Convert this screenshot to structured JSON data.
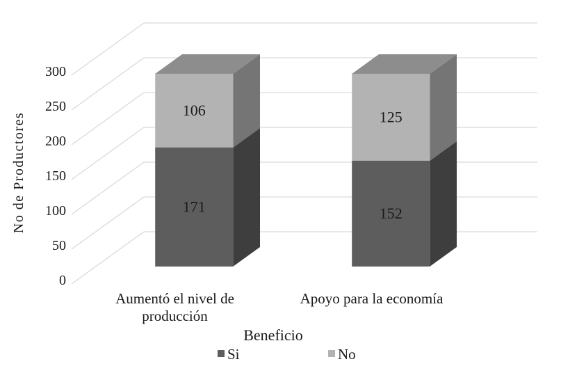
{
  "figure": {
    "background": "#ffffff"
  },
  "chart_data": {
    "type": "bar",
    "subtype": "3d-stacked-column",
    "title": "",
    "categories": [
      "Aumentó el nivel de producción",
      "Apoyo para la economía"
    ],
    "category_lines": [
      [
        "Aumentó el nivel de",
        "producción"
      ],
      [
        "Apoyo para la economía"
      ]
    ],
    "series": [
      {
        "name": "Si",
        "values": [
          171,
          152
        ],
        "front_color": "#5d5d5d",
        "side_color": "#3e3e3e",
        "top_color": "#8d8d8d"
      },
      {
        "name": "No",
        "values": [
          106,
          125
        ],
        "front_color": "#b3b3b3",
        "side_color": "#757575",
        "top_color": "#8d8d8d"
      }
    ],
    "xlabel": "Beneficio",
    "ylabel": "No de Productores",
    "ylim": [
      0,
      300
    ],
    "yticks": [
      0,
      50,
      100,
      150,
      200,
      250,
      300
    ],
    "grid": true,
    "gridline_color": "#d9d9d9",
    "text_color": "#1a1a1a",
    "data_labels": true,
    "legend": {
      "position": "bottom",
      "items": [
        "Si",
        "No"
      ]
    }
  }
}
